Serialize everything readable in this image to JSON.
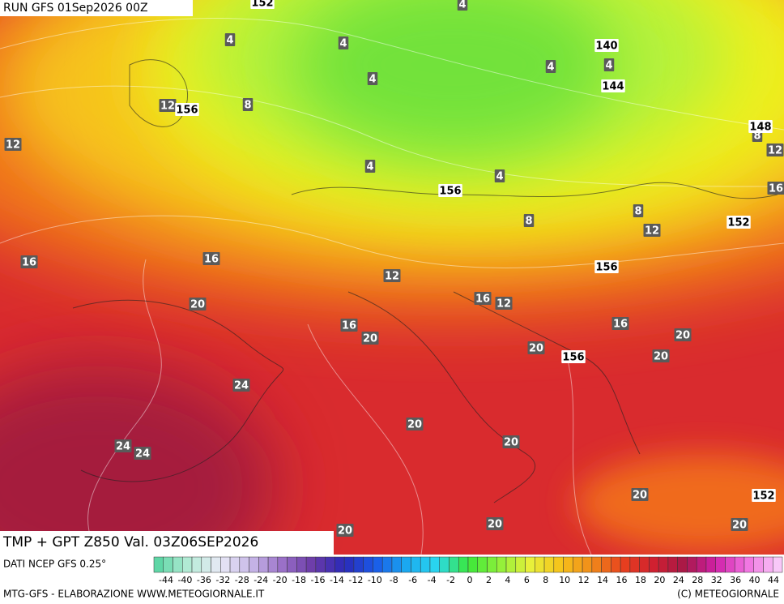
{
  "header": {
    "run": "RUN GFS 01Sep2026 00Z"
  },
  "map": {
    "temperature_labels": [
      4,
      4,
      4,
      4,
      4,
      4,
      8,
      12,
      12,
      4,
      4,
      8,
      8,
      12,
      12,
      16,
      16,
      16,
      12,
      16,
      12,
      20,
      16,
      20,
      20,
      16,
      20,
      20,
      24,
      20,
      20,
      24,
      24,
      20,
      20,
      20,
      20,
      8
    ],
    "height_labels": [
      152,
      140,
      144,
      156,
      148,
      156,
      152,
      156,
      156,
      152
    ],
    "field_label": "TMP + GPT Z850 Val. 03Z06SEP2026"
  },
  "legend": {
    "source": "DATI NCEP GFS 0.25°",
    "ticks": [
      -44,
      -40,
      -36,
      -32,
      -28,
      -24,
      -20,
      -18,
      -16,
      -14,
      -12,
      -10,
      -8,
      -6,
      -4,
      -2,
      0,
      2,
      4,
      6,
      8,
      10,
      12,
      14,
      16,
      18,
      20,
      24,
      28,
      32,
      36,
      40,
      44
    ]
  },
  "footer": {
    "left": "MTG-GFS - ELABORAZIONE WWW.METEOGIORNALE.IT",
    "right": "(C) METEOGIORNALE"
  }
}
